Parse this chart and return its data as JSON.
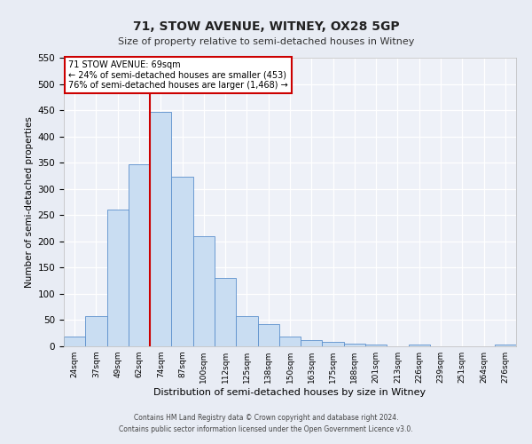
{
  "title": "71, STOW AVENUE, WITNEY, OX28 5GP",
  "subtitle": "Size of property relative to semi-detached houses in Witney",
  "xlabel": "Distribution of semi-detached houses by size in Witney",
  "ylabel": "Number of semi-detached properties",
  "bar_labels": [
    "24sqm",
    "37sqm",
    "49sqm",
    "62sqm",
    "74sqm",
    "87sqm",
    "100sqm",
    "112sqm",
    "125sqm",
    "138sqm",
    "150sqm",
    "163sqm",
    "175sqm",
    "188sqm",
    "201sqm",
    "213sqm",
    "226sqm",
    "239sqm",
    "251sqm",
    "264sqm",
    "276sqm"
  ],
  "bar_values": [
    18,
    57,
    260,
    347,
    447,
    323,
    210,
    130,
    57,
    42,
    18,
    12,
    8,
    5,
    3,
    0,
    4,
    0,
    0,
    0,
    3
  ],
  "bar_color": "#c9ddf2",
  "bar_edge_color": "#5b8fcc",
  "vline_x": 3.5,
  "vline_color": "#cc0000",
  "annotation_title": "71 STOW AVENUE: 69sqm",
  "annotation_line1": "← 24% of semi-detached houses are smaller (453)",
  "annotation_line2": "76% of semi-detached houses are larger (1,468) →",
  "annotation_box_edge_color": "#cc0000",
  "ylim": [
    0,
    550
  ],
  "yticks": [
    0,
    50,
    100,
    150,
    200,
    250,
    300,
    350,
    400,
    450,
    500,
    550
  ],
  "footer_line1": "Contains HM Land Registry data © Crown copyright and database right 2024.",
  "footer_line2": "Contains public sector information licensed under the Open Government Licence v3.0.",
  "bg_color": "#e8ecf4",
  "plot_bg_color": "#eef1f8"
}
